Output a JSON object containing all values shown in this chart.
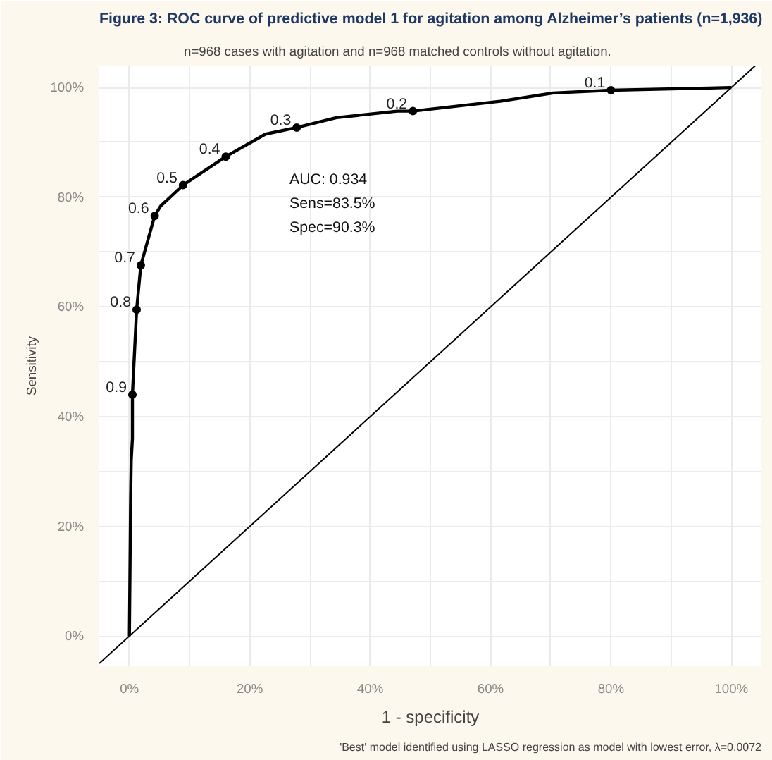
{
  "chart_data": {
    "type": "line",
    "title": "Figure 3: ROC curve of predictive model 1 for agitation among Alzheimer’s patients (n=1,936)",
    "subtitle": "n=968 cases with agitation and n=968 matched controls without agitation.",
    "xlabel": "1 - specificity",
    "ylabel": "Sensitivity",
    "series": [
      {
        "color": "#000000",
        "x": [
          0,
          0.2,
          0.3,
          0.5,
          0.5,
          1.2,
          1.9,
          4.2,
          5.2,
          8.9,
          16.0,
          22.6,
          27.8,
          34.4,
          44.5,
          47.1,
          61.6,
          70.4,
          80.0,
          100
        ],
        "values": [
          0,
          24.6,
          32,
          36,
          44,
          59.5,
          67.6,
          76.6,
          78.4,
          82.2,
          87.4,
          91.5,
          92.7,
          94.5,
          95.7,
          95.7,
          97.5,
          99.0,
          99.5,
          100
        ]
      },
      {
        "type": "scatter",
        "marker": "circle",
        "color": "#000000",
        "x": [
          0.5,
          1.2,
          1.9,
          4.2,
          8.9,
          16.0,
          27.8,
          47.1,
          80.0
        ],
        "values": [
          44,
          59.5,
          67.6,
          76.6,
          82.2,
          87.4,
          92.7,
          95.7,
          99.5
        ]
      },
      {
        "color": "#000000",
        "x": [
          -5,
          104
        ],
        "values": [
          -5,
          104
        ]
      }
    ],
    "xlim": [
      -5,
      105
    ],
    "ylim": [
      -5.5,
      104
    ],
    "xticks": [
      {
        "value": 0,
        "label": "0%"
      },
      {
        "value": 10,
        "label": null
      },
      {
        "value": 20,
        "label": "20%"
      },
      {
        "value": 30,
        "label": null
      },
      {
        "value": 40,
        "label": "40%"
      },
      {
        "value": 50,
        "label": null
      },
      {
        "value": 60,
        "label": "60%"
      },
      {
        "value": 70,
        "label": null
      },
      {
        "value": 80,
        "label": "80%"
      },
      {
        "value": 90,
        "label": null
      },
      {
        "value": 100,
        "label": "100%"
      }
    ],
    "yticks": [
      {
        "value": 0,
        "label": "0%"
      },
      {
        "value": 10,
        "label": null
      },
      {
        "value": 20,
        "label": "20%"
      },
      {
        "value": 30,
        "label": null
      },
      {
        "value": 40,
        "label": "40%"
      },
      {
        "value": 50,
        "label": null
      },
      {
        "value": 60,
        "label": "60%"
      },
      {
        "value": 70,
        "label": null
      },
      {
        "value": 80,
        "label": "80%"
      },
      {
        "value": 90,
        "label": null
      },
      {
        "value": 100,
        "label": "100%"
      }
    ],
    "grid": true,
    "line_style": "solid",
    "annotations": [
      {
        "text": "0.9",
        "x": 0.5,
        "y": 44
      },
      {
        "text": "0.8",
        "x": 1.2,
        "y": 59.5
      },
      {
        "text": "0.7",
        "x": 1.9,
        "y": 67.6
      },
      {
        "text": "0.6",
        "x": 4.2,
        "y": 76.6
      },
      {
        "text": "0.5",
        "x": 8.9,
        "y": 82.2
      },
      {
        "text": "0.4",
        "x": 16.0,
        "y": 87.4
      },
      {
        "text": "0.3",
        "x": 27.8,
        "y": 92.7
      },
      {
        "text": "0.2",
        "x": 47.1,
        "y": 95.7
      },
      {
        "text": "0.1",
        "x": 80.0,
        "y": 99.5
      },
      "AUC: 0.934",
      "Sens=83.5%",
      "Spec=90.3%",
      "'Best' model identified using LASSO regression as model with lowest error, λ=0.0072"
    ]
  }
}
